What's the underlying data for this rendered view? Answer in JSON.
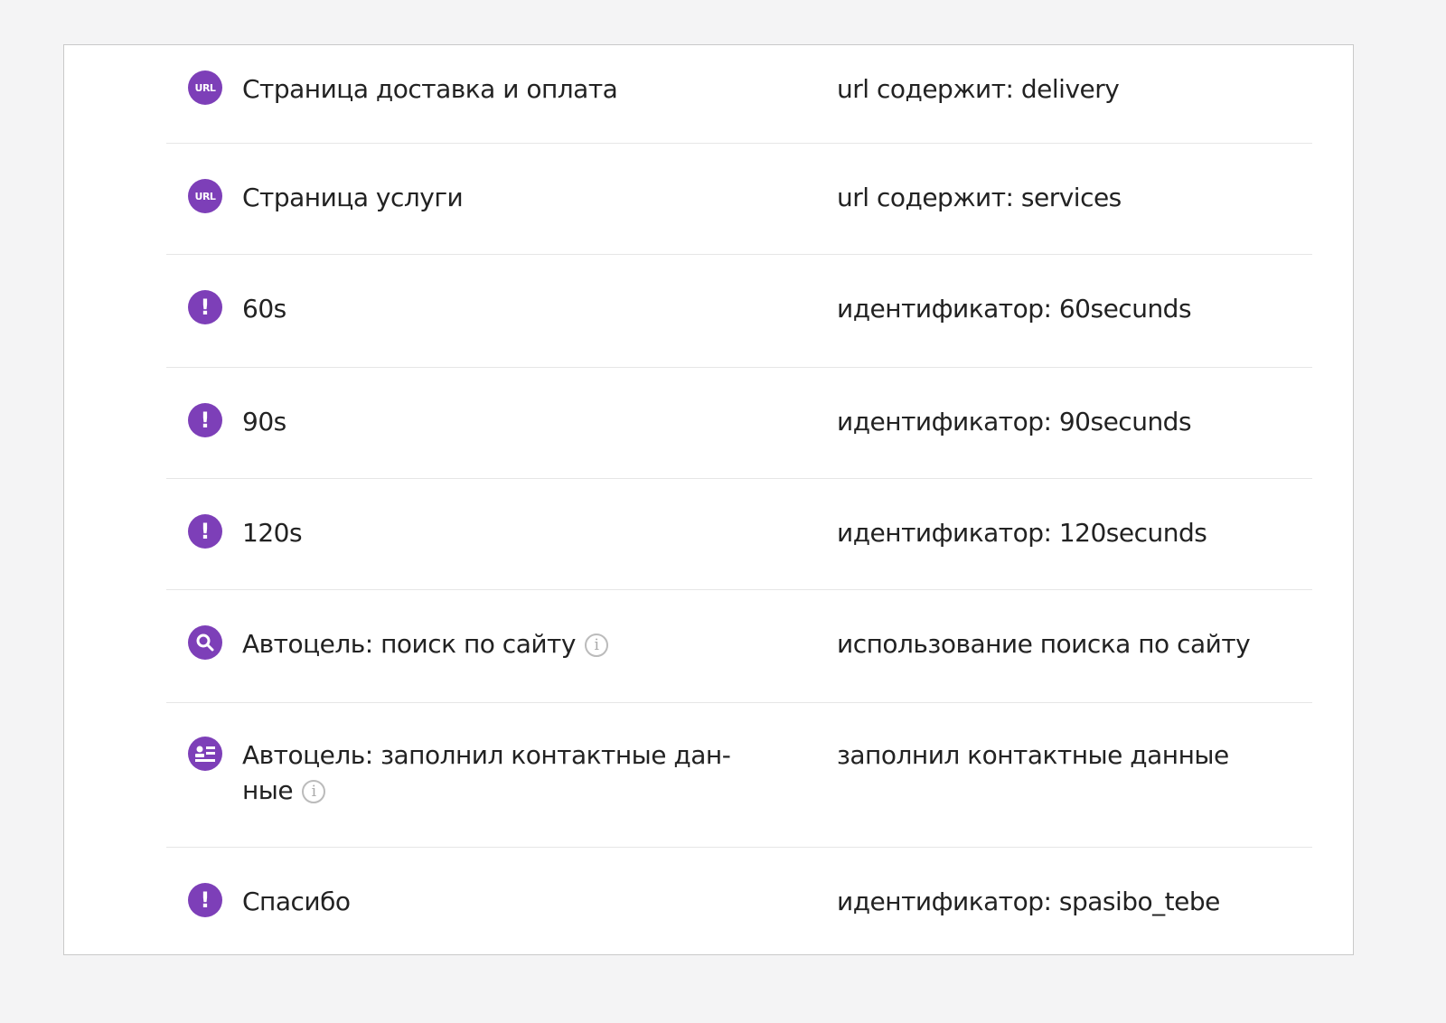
{
  "accent_color": "#7d3fb8",
  "goals": [
    {
      "icon": "url-icon",
      "icon_text": "URL",
      "name": "Страница доставка и оплата",
      "condition": "url содержит: delivery",
      "info": false
    },
    {
      "icon": "url-icon",
      "icon_text": "URL",
      "name": "Страница услуги",
      "condition": "url содержит: services",
      "info": false
    },
    {
      "icon": "exclamation-icon",
      "icon_text": "!",
      "name": "60s",
      "condition": "идентификатор: 60secunds",
      "info": false
    },
    {
      "icon": "exclamation-icon",
      "icon_text": "!",
      "name": "90s",
      "condition": "идентификатор: 90secunds",
      "info": false
    },
    {
      "icon": "exclamation-icon",
      "icon_text": "!",
      "name": "120s",
      "condition": "идентификатор: 120secunds",
      "info": false
    },
    {
      "icon": "search-icon",
      "icon_text": "",
      "name": "Автоцель: поиск по сайту",
      "condition": "использование поиска по сайту",
      "info": true
    },
    {
      "icon": "contact-form-icon",
      "icon_text": "",
      "name": "Автоцель: заполнил контактные дан-ные",
      "condition": "заполнил контактные данные",
      "info": true
    },
    {
      "icon": "exclamation-icon",
      "icon_text": "!",
      "name": "Спасибо",
      "condition": "идентификатор: spasibo_tebe",
      "info": false
    }
  ]
}
